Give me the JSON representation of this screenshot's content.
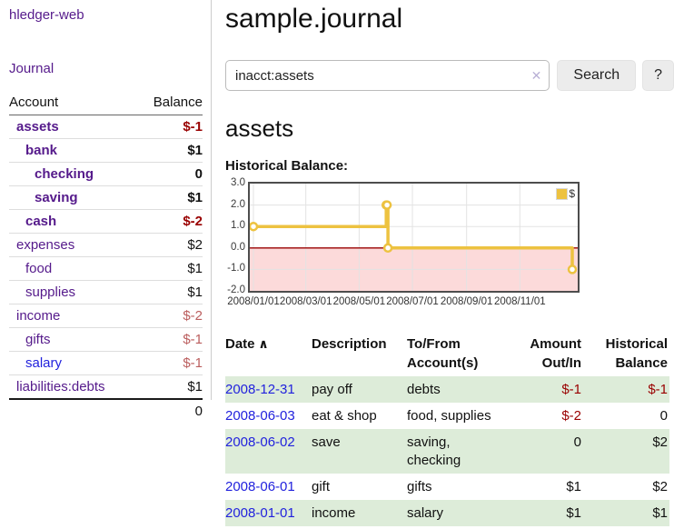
{
  "app": {
    "brand": "hledger-web"
  },
  "colors": {
    "accent_purple": "#551a8b",
    "link_blue": "#2222dd",
    "negative_strong": "#990000",
    "negative_soft": "#bb5e5e",
    "row_stripe_green": "#ddecd9",
    "chart_line_gold": "#edc240",
    "chart_negative_bg": "#fcdada",
    "chart_zero_line": "#990000"
  },
  "sidebar": {
    "journal_label": "Journal",
    "accounts_table": {
      "headers": [
        "Account",
        "Balance"
      ],
      "rows": [
        {
          "account": "assets",
          "depth": 0,
          "bold": true,
          "balance": "$-1",
          "balance_class": "neg-strong"
        },
        {
          "account": "bank",
          "depth": 1,
          "bold": true,
          "balance": "$1",
          "balance_class": ""
        },
        {
          "account": "checking",
          "depth": 2,
          "bold": true,
          "balance": "0",
          "balance_class": ""
        },
        {
          "account": "saving",
          "depth": 2,
          "bold": true,
          "balance": "$1",
          "balance_class": ""
        },
        {
          "account": "cash",
          "depth": 1,
          "bold": true,
          "balance": "$-2",
          "balance_class": "neg-strong"
        },
        {
          "account": "expenses",
          "depth": 0,
          "bold": false,
          "balance": "$2",
          "balance_class": ""
        },
        {
          "account": "food",
          "depth": 1,
          "bold": false,
          "balance": "$1",
          "balance_class": ""
        },
        {
          "account": "supplies",
          "depth": 1,
          "bold": false,
          "balance": "$1",
          "balance_class": ""
        },
        {
          "account": "income",
          "depth": 0,
          "bold": false,
          "balance": "$-2",
          "balance_class": "neg-soft"
        },
        {
          "account": "gifts",
          "depth": 1,
          "bold": false,
          "balance": "$-1",
          "balance_class": "neg-soft"
        },
        {
          "account": "salary",
          "depth": 1,
          "bold": false,
          "link_blue": true,
          "balance": "$-1",
          "balance_class": "neg-soft"
        },
        {
          "account": "liabilities:debts",
          "depth": 0,
          "bold": false,
          "balance": "$1",
          "balance_class": ""
        }
      ],
      "total": "0"
    }
  },
  "header": {
    "title": "sample.journal"
  },
  "search": {
    "value": "inacct:assets",
    "clear_icon": "✕",
    "button_label": "Search",
    "help_label": "?"
  },
  "register": {
    "heading": "assets"
  },
  "chart_data": {
    "type": "line",
    "title": "Historical Balance:",
    "step": true,
    "series": [
      {
        "name": "$",
        "color": "#edc240",
        "points": [
          [
            "2008-01-01",
            1
          ],
          [
            "2008-06-01",
            2
          ],
          [
            "2008-06-02",
            2
          ],
          [
            "2008-06-03",
            0
          ],
          [
            "2008-12-31",
            -1
          ]
        ]
      }
    ],
    "x_ticks": [
      "2008/01/01",
      "2008/03/01",
      "2008/05/01",
      "2008/07/01",
      "2008/09/01",
      "2008/11/01"
    ],
    "y_ticks": [
      "3.0",
      "2.0",
      "1.0",
      "0.0",
      "-1.0",
      "-2.0"
    ],
    "xlim": [
      "2008-01-01",
      "2009-01-01"
    ],
    "ylim": [
      -2,
      3
    ],
    "grid": true,
    "legend_position": "top-right",
    "negative_region_color": "#fcdada",
    "zero_line_color": "#990000",
    "grid_color": "#e3e3e3"
  },
  "table": {
    "headers": [
      {
        "label": "Date",
        "sort_icon": "∧",
        "align": "left"
      },
      {
        "label": "Description",
        "align": "left"
      },
      {
        "label": "To/From",
        "label2": "Account(s)",
        "align": "left"
      },
      {
        "label": "Amount",
        "label2": "Out/In",
        "align": "right"
      },
      {
        "label": "Historical",
        "label2": "Balance",
        "align": "right"
      }
    ],
    "rows": [
      {
        "date": "2008-12-31",
        "description": "pay off",
        "accounts": "debts",
        "amount": "$-1",
        "amount_class": "neg-strong",
        "balance": "$-1",
        "balance_class": "neg-strong"
      },
      {
        "date": "2008-06-03",
        "description": "eat & shop",
        "accounts": "food, supplies",
        "amount": "$-2",
        "amount_class": "neg-strong",
        "balance": "0",
        "balance_class": ""
      },
      {
        "date": "2008-06-02",
        "description": "save",
        "accounts": "saving, checking",
        "amount": "0",
        "amount_class": "",
        "balance": "$2",
        "balance_class": ""
      },
      {
        "date": "2008-06-01",
        "description": "gift",
        "accounts": "gifts",
        "amount": "$1",
        "amount_class": "",
        "balance": "$2",
        "balance_class": ""
      },
      {
        "date": "2008-01-01",
        "description": "income",
        "accounts": "salary",
        "amount": "$1",
        "amount_class": "",
        "balance": "$1",
        "balance_class": ""
      }
    ]
  }
}
